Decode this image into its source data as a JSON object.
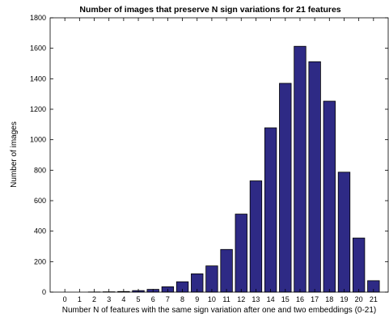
{
  "chart_data": {
    "type": "bar",
    "title": "Number of images that preserve N sign variations for 21 features",
    "xlabel": "Number N of features with the same sign variation after one and two embeddings (0-21)",
    "ylabel": "Number of images",
    "categories": [
      "0",
      "1",
      "2",
      "3",
      "4",
      "5",
      "6",
      "7",
      "8",
      "9",
      "10",
      "11",
      "12",
      "13",
      "14",
      "15",
      "16",
      "17",
      "18",
      "19",
      "20",
      "21"
    ],
    "values": [
      0,
      0,
      1,
      2,
      4,
      10,
      18,
      35,
      68,
      120,
      172,
      280,
      512,
      730,
      1078,
      1370,
      1613,
      1512,
      1253,
      787,
      355,
      75
    ],
    "ylim": [
      0,
      1800
    ],
    "yticks": [
      0,
      200,
      400,
      600,
      800,
      1000,
      1200,
      1400,
      1600,
      1800
    ],
    "grid": false,
    "colors": {
      "bar_fill": "#2e2a85",
      "bar_edge": "#000000",
      "axis": "#000000"
    }
  }
}
